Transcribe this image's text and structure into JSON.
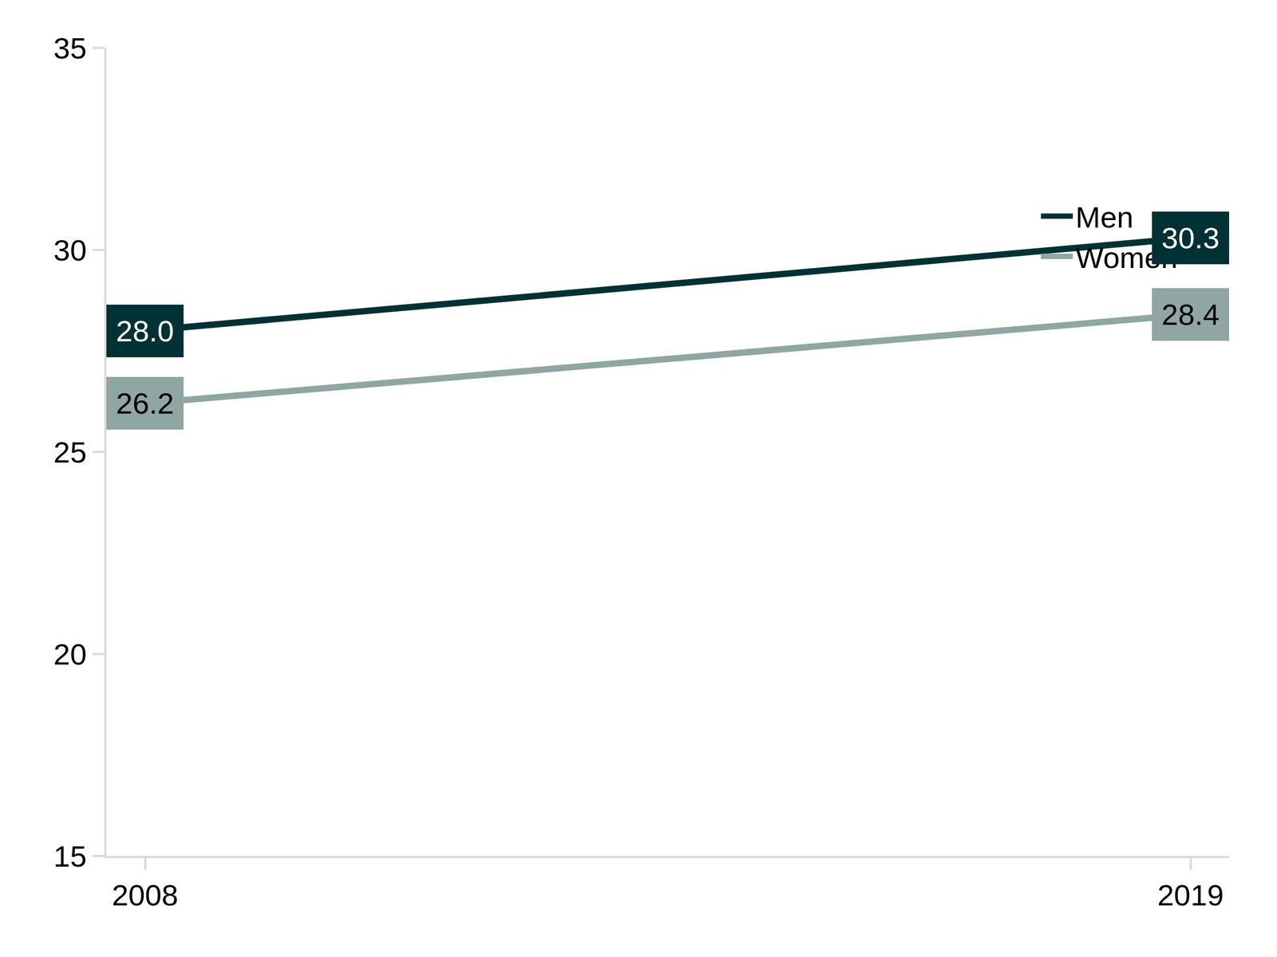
{
  "chart_data": {
    "type": "line",
    "categories": [
      "2008",
      "2019"
    ],
    "series": [
      {
        "name": "Men",
        "color": "#003135",
        "values": [
          28.0,
          30.3
        ],
        "value_labels": [
          "28.0",
          "30.3"
        ]
      },
      {
        "name": "Women",
        "color": "#8fa6a3",
        "values": [
          26.2,
          28.4
        ],
        "value_labels": [
          "26.2",
          "28.4"
        ]
      }
    ],
    "ylim": [
      15,
      35
    ],
    "yticks": [
      15,
      20,
      25,
      30,
      35
    ],
    "grid": false,
    "legend": "right",
    "data_labels": true
  }
}
